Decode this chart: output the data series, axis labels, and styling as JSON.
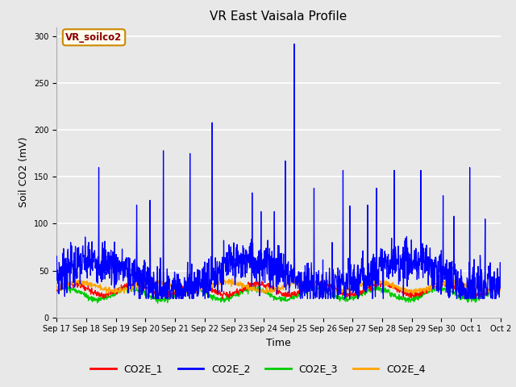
{
  "title": "VR East Vaisala Profile",
  "xlabel": "Time",
  "ylabel": "Soil CO2 (mV)",
  "annotation": "VR_soilco2",
  "ylim": [
    0,
    310
  ],
  "yticks": [
    0,
    50,
    100,
    150,
    200,
    250,
    300
  ],
  "n_points": 1500,
  "fig_bg_color": "#e8e8e8",
  "plot_bg_color": "#e8e8e8",
  "line_colors": {
    "CO2E_1": "#ff0000",
    "CO2E_2": "#0000ff",
    "CO2E_3": "#00cc00",
    "CO2E_4": "#ffa500"
  },
  "xtick_labels": [
    "Sep 17",
    "Sep 18",
    "Sep 19",
    "Sep 20",
    "Sep 21",
    "Sep 22",
    "Sep 23",
    "Sep 24",
    "Sep 25",
    "Sep 26",
    "Sep 27",
    "Sep 28",
    "Sep 29",
    "Sep 30",
    "Oct 1",
    "Oct 2"
  ],
  "grid_color": "#ffffff",
  "title_fontsize": 11,
  "axis_fontsize": 9,
  "tick_fontsize": 7,
  "legend_fontsize": 9
}
